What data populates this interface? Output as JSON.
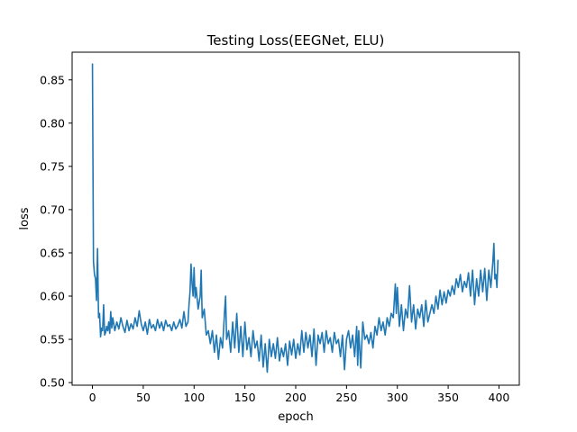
{
  "chart_data": {
    "type": "line",
    "title": "Testing Loss(EEGNet, ELU)",
    "xlabel": "epoch",
    "ylabel": "loss",
    "xlim": [
      -20,
      420
    ],
    "ylim": [
      0.497,
      0.882
    ],
    "xticks": [
      0,
      50,
      100,
      150,
      200,
      250,
      300,
      350,
      400
    ],
    "yticks": [
      0.5,
      0.55,
      0.6,
      0.65,
      0.7,
      0.75,
      0.8,
      0.85
    ],
    "ytick_labels": [
      "0.50",
      "0.55",
      "0.60",
      "0.65",
      "0.70",
      "0.75",
      "0.80",
      "0.85"
    ],
    "grid": false,
    "legend": "none",
    "series": [
      {
        "color": "#1f77b4",
        "points": [
          [
            0,
            0.869
          ],
          [
            1,
            0.64
          ],
          [
            2,
            0.625
          ],
          [
            3,
            0.62
          ],
          [
            4,
            0.595
          ],
          [
            5,
            0.655
          ],
          [
            6,
            0.575
          ],
          [
            7,
            0.58
          ],
          [
            8,
            0.553
          ],
          [
            9,
            0.563
          ],
          [
            10,
            0.56
          ],
          [
            11,
            0.59
          ],
          [
            12,
            0.555
          ],
          [
            13,
            0.558
          ],
          [
            14,
            0.565
          ],
          [
            15,
            0.56
          ],
          [
            16,
            0.57
          ],
          [
            17,
            0.557
          ],
          [
            18,
            0.582
          ],
          [
            19,
            0.563
          ],
          [
            20,
            0.575
          ],
          [
            22,
            0.56
          ],
          [
            24,
            0.57
          ],
          [
            26,
            0.562
          ],
          [
            28,
            0.575
          ],
          [
            30,
            0.565
          ],
          [
            32,
            0.558
          ],
          [
            34,
            0.572
          ],
          [
            36,
            0.56
          ],
          [
            38,
            0.568
          ],
          [
            40,
            0.562
          ],
          [
            42,
            0.575
          ],
          [
            44,
            0.565
          ],
          [
            46,
            0.583
          ],
          [
            48,
            0.568
          ],
          [
            50,
            0.56
          ],
          [
            52,
            0.57
          ],
          [
            54,
            0.556
          ],
          [
            56,
            0.573
          ],
          [
            58,
            0.563
          ],
          [
            60,
            0.567
          ],
          [
            62,
            0.56
          ],
          [
            64,
            0.573
          ],
          [
            66,
            0.563
          ],
          [
            68,
            0.57
          ],
          [
            70,
            0.56
          ],
          [
            72,
            0.572
          ],
          [
            74,
            0.565
          ],
          [
            76,
            0.567
          ],
          [
            78,
            0.56
          ],
          [
            80,
            0.57
          ],
          [
            82,
            0.562
          ],
          [
            84,
            0.566
          ],
          [
            86,
            0.573
          ],
          [
            88,
            0.563
          ],
          [
            90,
            0.582
          ],
          [
            92,
            0.565
          ],
          [
            94,
            0.57
          ],
          [
            95,
            0.59
          ],
          [
            96,
            0.605
          ],
          [
            97,
            0.637
          ],
          [
            98,
            0.615
          ],
          [
            99,
            0.6
          ],
          [
            100,
            0.633
          ],
          [
            101,
            0.598
          ],
          [
            102,
            0.61
          ],
          [
            104,
            0.585
          ],
          [
            106,
            0.6
          ],
          [
            107,
            0.63
          ],
          [
            108,
            0.575
          ],
          [
            110,
            0.585
          ],
          [
            112,
            0.555
          ],
          [
            114,
            0.56
          ],
          [
            116,
            0.545
          ],
          [
            118,
            0.56
          ],
          [
            120,
            0.535
          ],
          [
            122,
            0.555
          ],
          [
            124,
            0.527
          ],
          [
            126,
            0.552
          ],
          [
            128,
            0.54
          ],
          [
            130,
            0.582
          ],
          [
            131,
            0.6
          ],
          [
            132,
            0.55
          ],
          [
            134,
            0.56
          ],
          [
            136,
            0.535
          ],
          [
            138,
            0.57
          ],
          [
            140,
            0.54
          ],
          [
            142,
            0.58
          ],
          [
            144,
            0.535
          ],
          [
            146,
            0.565
          ],
          [
            148,
            0.53
          ],
          [
            150,
            0.57
          ],
          [
            152,
            0.538
          ],
          [
            154,
            0.552
          ],
          [
            156,
            0.53
          ],
          [
            158,
            0.56
          ],
          [
            160,
            0.54
          ],
          [
            162,
            0.548
          ],
          [
            164,
            0.525
          ],
          [
            166,
            0.555
          ],
          [
            168,
            0.518
          ],
          [
            170,
            0.545
          ],
          [
            172,
            0.512
          ],
          [
            174,
            0.55
          ],
          [
            176,
            0.53
          ],
          [
            178,
            0.545
          ],
          [
            180,
            0.528
          ],
          [
            182,
            0.552
          ],
          [
            184,
            0.525
          ],
          [
            186,
            0.54
          ],
          [
            188,
            0.53
          ],
          [
            190,
            0.545
          ],
          [
            192,
            0.52
          ],
          [
            194,
            0.548
          ],
          [
            196,
            0.532
          ],
          [
            198,
            0.55
          ],
          [
            200,
            0.528
          ],
          [
            202,
            0.545
          ],
          [
            204,
            0.532
          ],
          [
            206,
            0.56
          ],
          [
            208,
            0.535
          ],
          [
            210,
            0.558
          ],
          [
            212,
            0.54
          ],
          [
            214,
            0.555
          ],
          [
            216,
            0.53
          ],
          [
            218,
            0.562
          ],
          [
            220,
            0.52
          ],
          [
            222,
            0.555
          ],
          [
            224,
            0.545
          ],
          [
            226,
            0.558
          ],
          [
            228,
            0.535
          ],
          [
            230,
            0.56
          ],
          [
            232,
            0.545
          ],
          [
            234,
            0.552
          ],
          [
            236,
            0.535
          ],
          [
            238,
            0.558
          ],
          [
            240,
            0.545
          ],
          [
            242,
            0.55
          ],
          [
            244,
            0.53
          ],
          [
            246,
            0.555
          ],
          [
            248,
            0.515
          ],
          [
            250,
            0.55
          ],
          [
            252,
            0.56
          ],
          [
            254,
            0.54
          ],
          [
            256,
            0.555
          ],
          [
            258,
            0.53
          ],
          [
            260,
            0.565
          ],
          [
            261,
            0.52
          ],
          [
            262,
            0.56
          ],
          [
            264,
            0.517
          ],
          [
            266,
            0.57
          ],
          [
            268,
            0.55
          ],
          [
            270,
            0.555
          ],
          [
            272,
            0.545
          ],
          [
            274,
            0.558
          ],
          [
            276,
            0.54
          ],
          [
            278,
            0.565
          ],
          [
            280,
            0.555
          ],
          [
            282,
            0.575
          ],
          [
            284,
            0.56
          ],
          [
            286,
            0.57
          ],
          [
            288,
            0.555
          ],
          [
            290,
            0.575
          ],
          [
            292,
            0.565
          ],
          [
            294,
            0.58
          ],
          [
            296,
            0.575
          ],
          [
            298,
            0.614
          ],
          [
            299,
            0.58
          ],
          [
            300,
            0.61
          ],
          [
            302,
            0.565
          ],
          [
            304,
            0.59
          ],
          [
            306,
            0.56
          ],
          [
            308,
            0.585
          ],
          [
            310,
            0.575
          ],
          [
            312,
            0.612
          ],
          [
            314,
            0.57
          ],
          [
            316,
            0.59
          ],
          [
            318,
            0.562
          ],
          [
            320,
            0.585
          ],
          [
            322,
            0.575
          ],
          [
            324,
            0.59
          ],
          [
            326,
            0.565
          ],
          [
            328,
            0.595
          ],
          [
            330,
            0.57
          ],
          [
            332,
            0.58
          ],
          [
            334,
            0.59
          ],
          [
            336,
            0.58
          ],
          [
            338,
            0.6
          ],
          [
            340,
            0.585
          ],
          [
            342,
            0.607
          ],
          [
            344,
            0.59
          ],
          [
            346,
            0.605
          ],
          [
            348,
            0.592
          ],
          [
            350,
            0.607
          ],
          [
            352,
            0.6
          ],
          [
            354,
            0.612
          ],
          [
            356,
            0.602
          ],
          [
            358,
            0.62
          ],
          [
            360,
            0.61
          ],
          [
            362,
            0.625
          ],
          [
            364,
            0.605
          ],
          [
            366,
            0.617
          ],
          [
            368,
            0.61
          ],
          [
            370,
            0.627
          ],
          [
            372,
            0.6
          ],
          [
            374,
            0.63
          ],
          [
            376,
            0.59
          ],
          [
            378,
            0.62
          ],
          [
            380,
            0.6
          ],
          [
            382,
            0.63
          ],
          [
            384,
            0.605
          ],
          [
            386,
            0.632
          ],
          [
            388,
            0.595
          ],
          [
            390,
            0.63
          ],
          [
            392,
            0.61
          ],
          [
            394,
            0.64
          ],
          [
            395,
            0.661
          ],
          [
            396,
            0.62
          ],
          [
            397,
            0.625
          ],
          [
            398,
            0.61
          ],
          [
            399,
            0.642
          ]
        ]
      }
    ]
  }
}
